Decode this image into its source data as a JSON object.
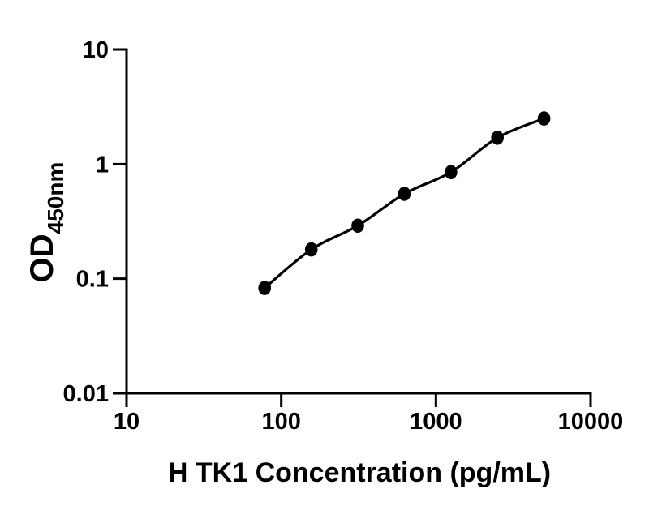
{
  "figure": {
    "background_color": "#ffffff",
    "line_color": "#000000",
    "text_color": "#000000"
  },
  "chart_data": {
    "type": "scatter",
    "title": "",
    "xlabel": "H TK1 Concentration (pg/mL)",
    "ylabel_main": "OD",
    "ylabel_sub": "450nm",
    "x_scale": "log",
    "y_scale": "log",
    "xlim": [
      10,
      10000
    ],
    "ylim": [
      0.01,
      10
    ],
    "x_ticks": [
      10,
      100,
      1000,
      10000
    ],
    "x_tick_labels": [
      "10",
      "100",
      "1000",
      "10000"
    ],
    "y_ticks": [
      10,
      1,
      0.1,
      0.01
    ],
    "y_tick_labels": [
      "10",
      "1",
      "0.1",
      "0.01"
    ],
    "grid": false,
    "legend_position": "none",
    "series": [
      {
        "marker": "filled-circle",
        "marker_color": "#000000",
        "line": "fit-curve",
        "line_color": "#000000",
        "x": [
          78.1,
          156.3,
          312.5,
          625,
          1250,
          2500,
          5000
        ],
        "y": [
          0.083,
          0.18,
          0.29,
          0.55,
          0.85,
          1.7,
          2.5
        ]
      }
    ]
  }
}
